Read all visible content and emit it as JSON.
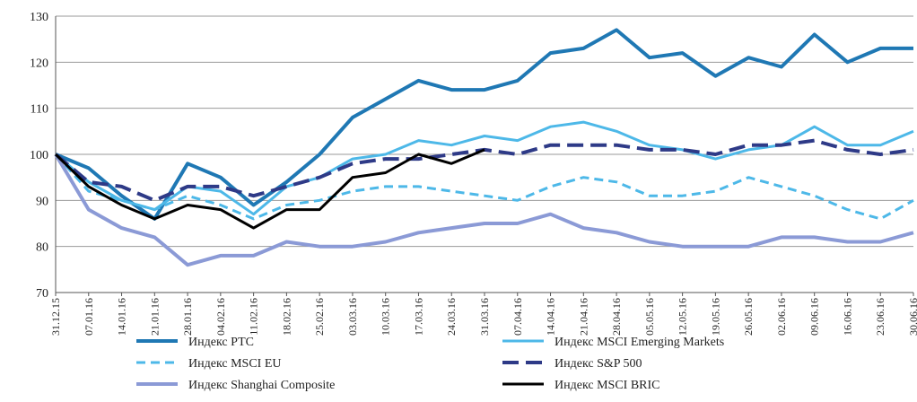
{
  "chart_data": {
    "type": "line",
    "title": "",
    "xlabel": "",
    "ylabel": "",
    "ylim": [
      70,
      130
    ],
    "yticks": [
      70,
      80,
      90,
      100,
      110,
      120,
      130
    ],
    "grid": "horizontal",
    "legend_position": "bottom",
    "x_tick_labels": [
      "31.12.15",
      "07.01.16",
      "14.01.16",
      "21.01.16",
      "28.01.16",
      "04.02.16",
      "11.02.16",
      "18.02.16",
      "25.02.16",
      "03.03.16",
      "10.03.16",
      "17.03.16",
      "24.03.16",
      "31.03.16",
      "07.04.16",
      "14.04.16",
      "21.04.16",
      "28.04.16",
      "05.05.16",
      "12.05.16",
      "19.05.16",
      "26.05.16",
      "02.06.16",
      "09.06.16",
      "16.06.16",
      "23.06.16",
      "30.06.16"
    ],
    "x": [
      0,
      1,
      2,
      3,
      4,
      5,
      6,
      7,
      8,
      9,
      10,
      11,
      12,
      13,
      14,
      15,
      16,
      17,
      18,
      19,
      20,
      21,
      22,
      23,
      24,
      25,
      26
    ],
    "series": [
      {
        "name": "Индекс РТС",
        "color": "#1f78b4",
        "dash": "solid",
        "width": 4,
        "values": [
          100,
          97,
          91,
          86,
          98,
          95,
          89,
          94,
          100,
          108,
          112,
          116,
          114,
          114,
          116,
          122,
          123,
          127,
          121,
          122,
          117,
          121,
          119,
          126,
          120,
          123,
          123
        ]
      },
      {
        "name": "Индекс MSCI Emerging Markets",
        "color": "#4db8e8",
        "dash": "solid",
        "width": 3,
        "values": [
          100,
          94,
          90,
          88,
          93,
          92,
          87,
          93,
          95,
          99,
          100,
          103,
          102,
          104,
          103,
          106,
          107,
          105,
          102,
          101,
          99,
          101,
          102,
          106,
          102,
          102,
          105
        ]
      },
      {
        "name": "Индекс MSCI EU",
        "color": "#4db8e8",
        "dash": "dashed",
        "width": 3,
        "values": [
          100,
          92,
          90,
          88,
          91,
          89,
          86,
          89,
          90,
          92,
          93,
          93,
          92,
          91,
          90,
          93,
          95,
          94,
          91,
          91,
          92,
          95,
          93,
          91,
          88,
          86,
          90
        ]
      },
      {
        "name": "Индекс S&P 500",
        "color": "#2e3a87",
        "dash": "long-dash",
        "width": 4,
        "values": [
          100,
          94,
          93,
          90,
          93,
          93,
          91,
          93,
          95,
          98,
          99,
          99,
          100,
          101,
          100,
          102,
          102,
          102,
          101,
          101,
          100,
          102,
          102,
          103,
          101,
          100,
          101
        ]
      },
      {
        "name": "Индекс Shanghai Composite",
        "color": "#8b9ad6",
        "dash": "solid",
        "width": 4,
        "values": [
          100,
          88,
          84,
          82,
          76,
          78,
          78,
          81,
          80,
          80,
          81,
          83,
          84,
          85,
          85,
          87,
          84,
          83,
          81,
          80,
          80,
          80,
          82,
          82,
          81,
          81,
          83
        ]
      },
      {
        "name": "Индекс MSCI BRIC",
        "color": "#000000",
        "dash": "solid",
        "width": 3,
        "values": [
          100,
          93,
          89,
          86,
          89,
          88,
          84,
          88,
          88,
          95,
          96,
          100,
          98,
          101,
          null,
          null,
          null,
          null,
          null,
          null,
          null,
          null,
          null,
          null,
          null,
          null,
          null
        ]
      }
    ]
  }
}
